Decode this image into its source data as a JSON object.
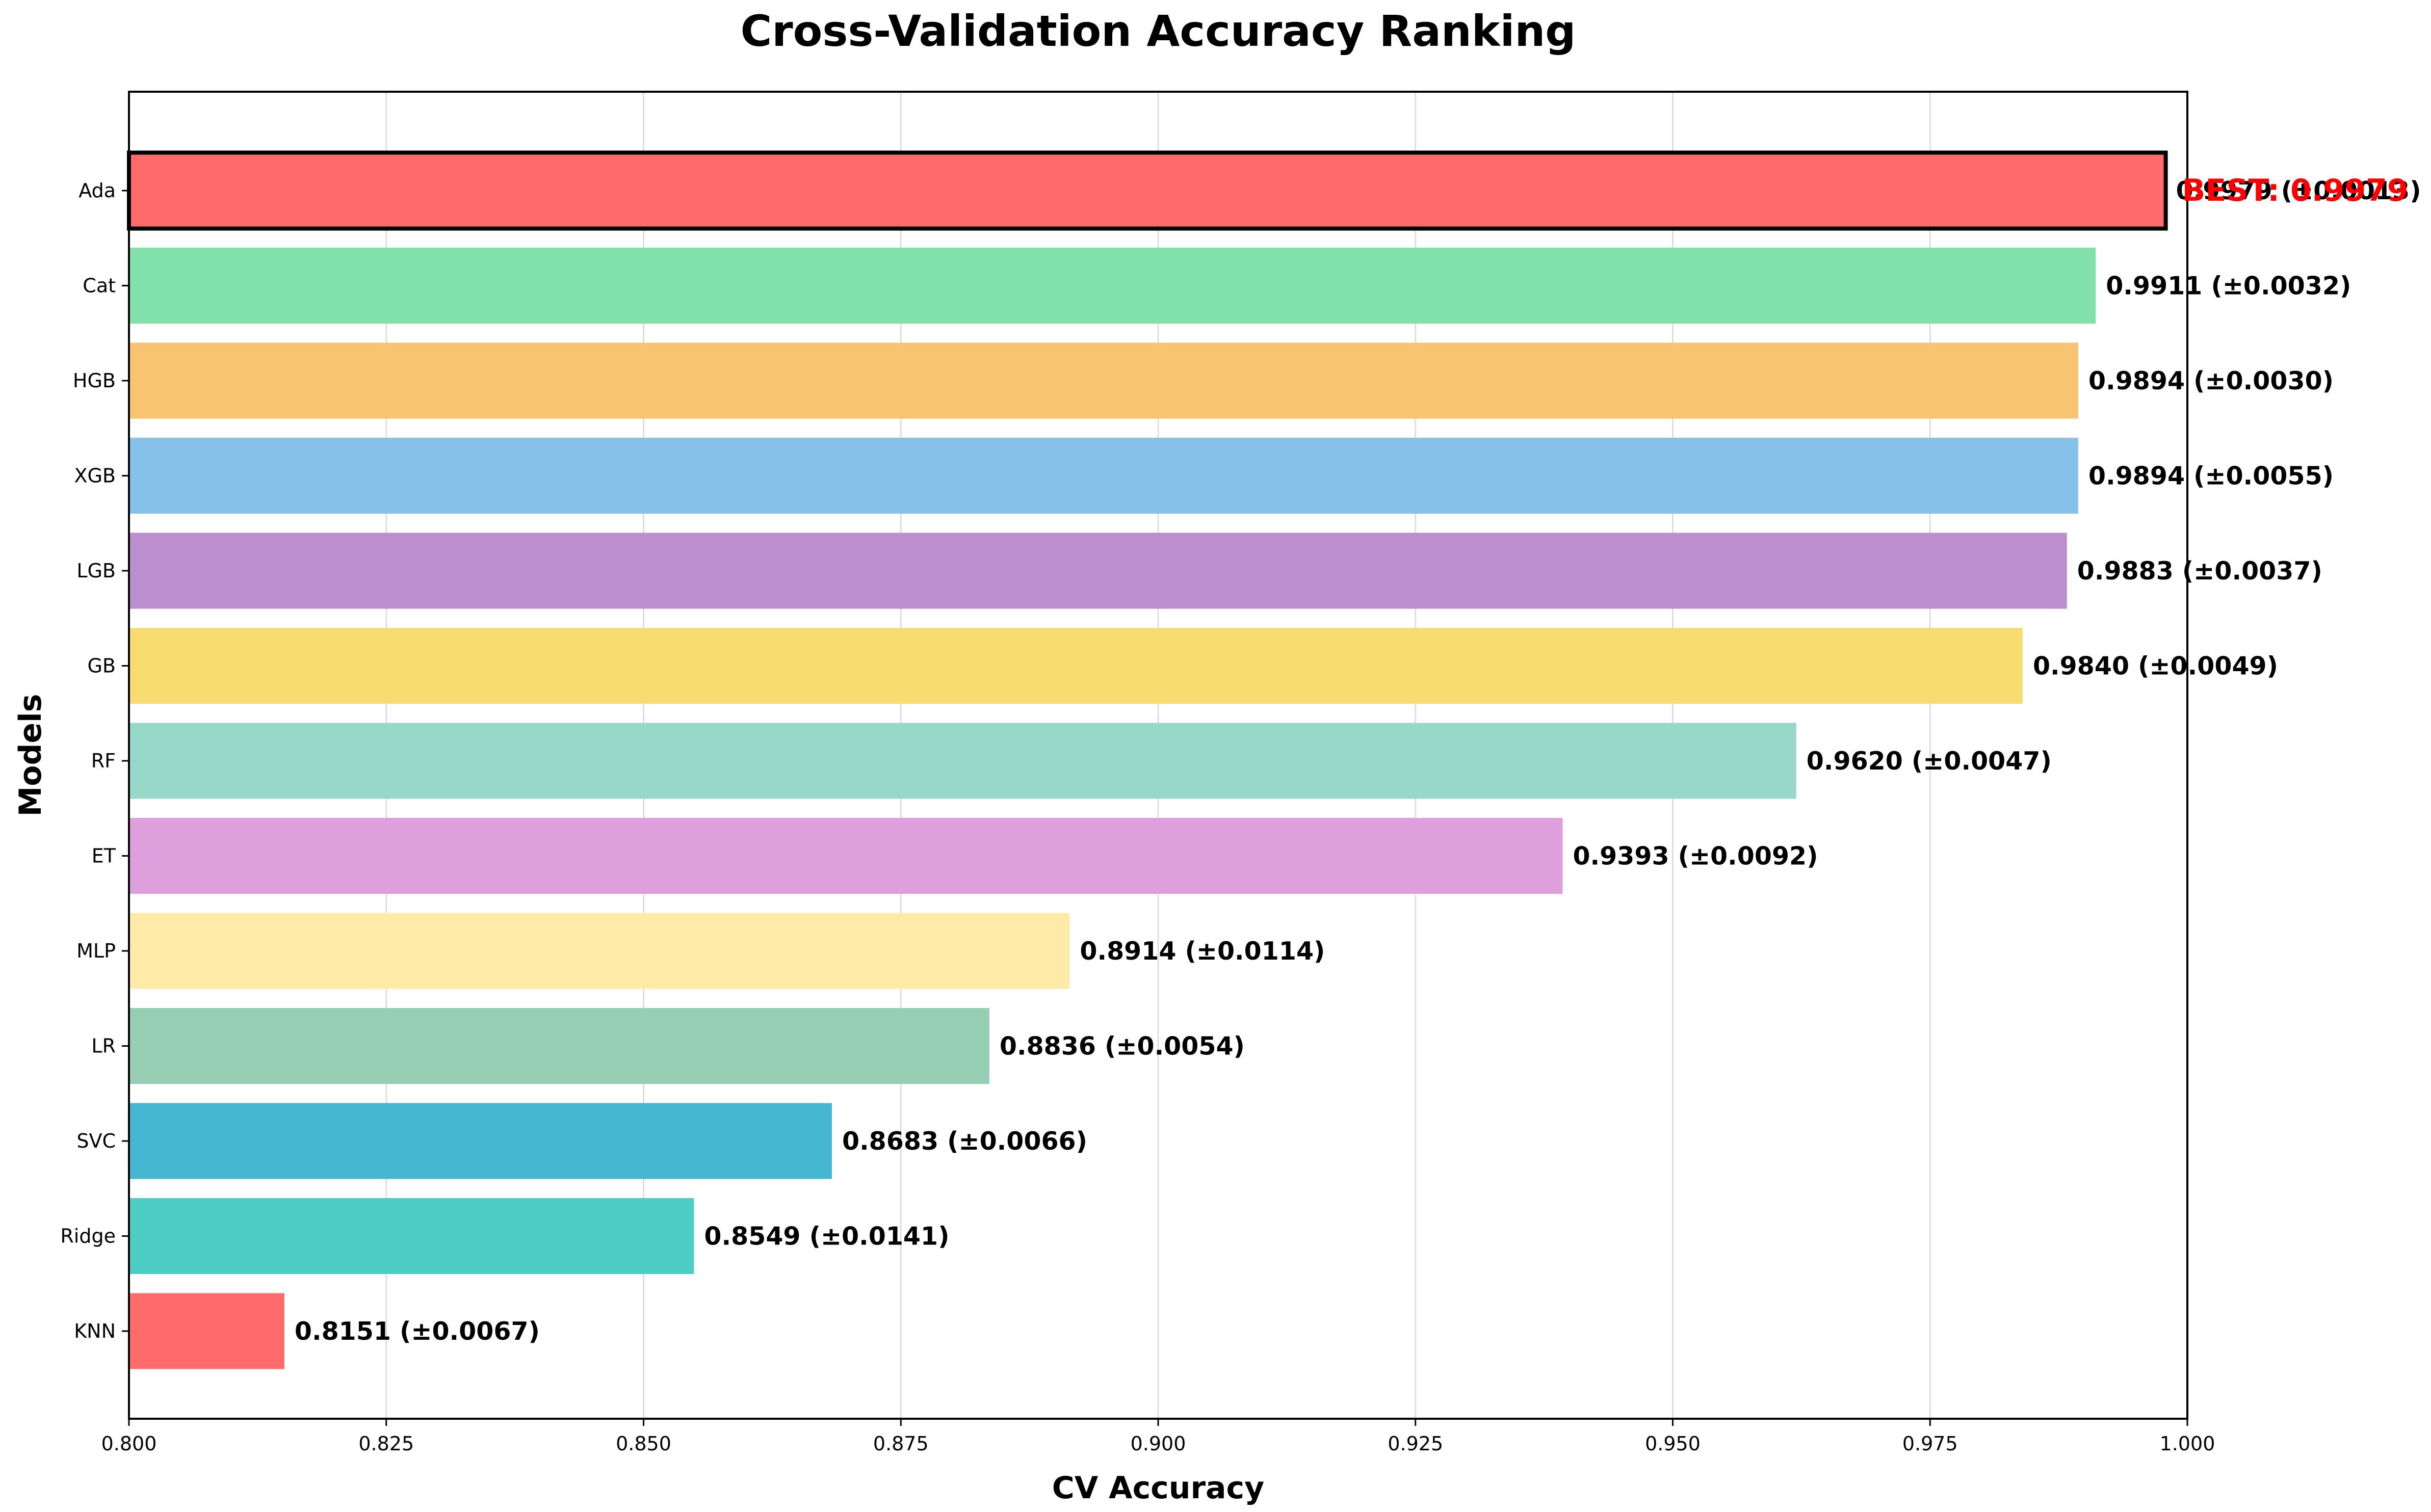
{
  "chart_data": {
    "type": "bar",
    "orientation": "horizontal",
    "title": "Cross-Validation Accuracy Ranking",
    "xlabel": "CV Accuracy",
    "ylabel": "Models",
    "xlim": [
      0.8,
      1.0
    ],
    "xticks": [
      "0.800",
      "0.825",
      "0.850",
      "0.875",
      "0.900",
      "0.925",
      "0.950",
      "0.975",
      "1.000"
    ],
    "grid": "vertical",
    "categories": [
      "Ada",
      "Cat",
      "HGB",
      "XGB",
      "LGB",
      "GB",
      "RF",
      "ET",
      "MLP",
      "LR",
      "SVC",
      "Ridge",
      "KNN"
    ],
    "values": [
      0.9979,
      0.9911,
      0.9894,
      0.9894,
      0.9883,
      0.984,
      0.962,
      0.9393,
      0.8914,
      0.8836,
      0.8683,
      0.8549,
      0.8151
    ],
    "stds": [
      0.0013,
      0.0032,
      0.003,
      0.0055,
      0.0037,
      0.0049,
      0.0047,
      0.0092,
      0.0114,
      0.0054,
      0.0066,
      0.0141,
      0.0067
    ],
    "value_labels": [
      "0.9979 (±0.0013)",
      "0.9911 (±0.0032)",
      "0.9894 (±0.0030)",
      "0.9894 (±0.0055)",
      "0.9883 (±0.0037)",
      "0.9840 (±0.0049)",
      "0.9620 (±0.0047)",
      "0.9393 (±0.0092)",
      "0.8914 (±0.0114)",
      "0.8836 (±0.0054)",
      "0.8683 (±0.0066)",
      "0.8549 (±0.0141)",
      "0.8151 (±0.0067)"
    ],
    "colors": [
      "#ff6b6b",
      "#82e0aa",
      "#f8c471",
      "#85c1e9",
      "#bb8fce",
      "#f7dc6f",
      "#98d8c8",
      "#dda0dd",
      "#ffeaa7",
      "#96ceb4",
      "#45b7d1",
      "#4ecdc4",
      "#ff6b6b"
    ],
    "highlight": {
      "category": "Ada",
      "text": "BEST: 0.9979",
      "color": "#ff0000"
    }
  }
}
